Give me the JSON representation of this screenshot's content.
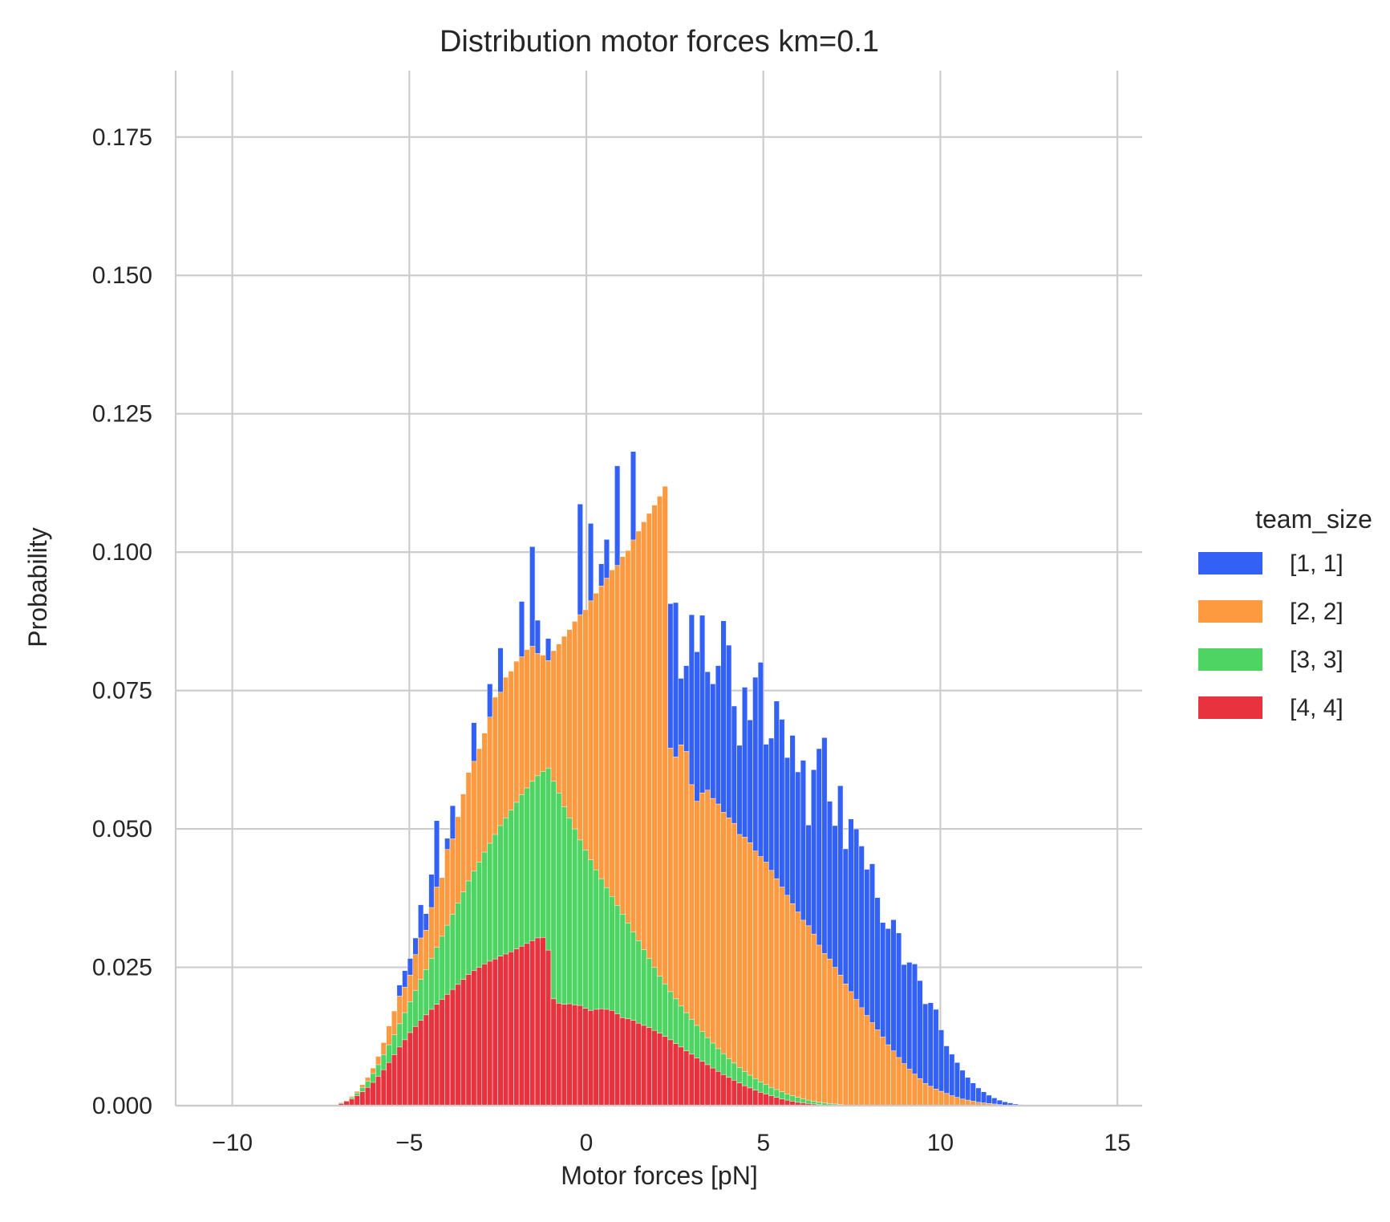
{
  "chart_data": {
    "type": "bar",
    "stacked": true,
    "title": "Distribution motor forces km=0.1",
    "xlabel": "Motor forces [pN]",
    "ylabel": "Probability",
    "xlim": [
      -11.6,
      15.7
    ],
    "ylim": [
      0,
      0.187
    ],
    "xticks": [
      -10,
      -5,
      0,
      5,
      10,
      15
    ],
    "xtick_labels": [
      "−10",
      "−5",
      "0",
      "5",
      "10",
      "15"
    ],
    "yticks": [
      0,
      0.025,
      0.05,
      0.075,
      0.1,
      0.125,
      0.15,
      0.175
    ],
    "ytick_labels": [
      "0.000",
      "0.025",
      "0.050",
      "0.075",
      "0.100",
      "0.125",
      "0.150",
      "0.175"
    ],
    "grid": true,
    "legend": {
      "title": "team_size",
      "placement": "right"
    },
    "bin_start": -7.0,
    "bin_width": 0.15,
    "series": [
      {
        "name": "[1, 1]",
        "color": "#3461f5",
        "cumulative": [
          0.0006,
          0.001,
          0.0017,
          0.0026,
          0.0038,
          0.0051,
          0.0068,
          0.0089,
          0.0114,
          0.0144,
          0.0171,
          0.0218,
          0.0244,
          0.0266,
          0.0303,
          0.0363,
          0.0347,
          0.0418,
          0.0515,
          0.0392,
          0.0483,
          0.0542,
          0.0472,
          0.0493,
          0.0592,
          0.0692,
          0.0595,
          0.0523,
          0.0762,
          0.0658,
          0.0827,
          0.0664,
          0.0725,
          0.0763,
          0.0911,
          0.0804,
          0.101,
          0.0877,
          0.0814,
          0.0844,
          0.0732,
          0.0754,
          0.0828,
          0.086,
          0.0765,
          0.1087,
          0.0876,
          0.1052,
          0.0846,
          0.0979,
          0.1023,
          0.0881,
          0.1156,
          0.0846,
          0.0978,
          0.1182,
          0.0978,
          0.0865,
          0.0995,
          0.0815,
          0.1009,
          0.0777,
          0.0907,
          0.0909,
          0.0772,
          0.0795,
          0.0887,
          0.082,
          0.0886,
          0.0784,
          0.0762,
          0.0795,
          0.0876,
          0.0832,
          0.0722,
          0.0651,
          0.0756,
          0.0697,
          0.0774,
          0.0801,
          0.0653,
          0.0664,
          0.0731,
          0.0698,
          0.0629,
          0.0669,
          0.0603,
          0.0624,
          0.0507,
          0.0607,
          0.0645,
          0.0665,
          0.055,
          0.0506,
          0.0578,
          0.0464,
          0.0518,
          0.05,
          0.0469,
          0.0427,
          0.0437,
          0.0376,
          0.0331,
          0.032,
          0.0336,
          0.0312,
          0.0255,
          0.0259,
          0.0256,
          0.0226,
          0.0184,
          0.0186,
          0.0174,
          0.0137,
          0.0108,
          0.0093,
          0.0078,
          0.0064,
          0.0051,
          0.0041,
          0.0032,
          0.0025,
          0.0019,
          0.0014,
          0.001,
          0.0007,
          0.0005,
          0.0003,
          0.0002,
          0.0001
        ]
      },
      {
        "name": "[2, 2]",
        "color": "#fd9a3f",
        "cumulative": [
          0.0006,
          0.001,
          0.0017,
          0.0026,
          0.0038,
          0.0051,
          0.0068,
          0.0089,
          0.0114,
          0.0144,
          0.0171,
          0.0198,
          0.0214,
          0.0236,
          0.0273,
          0.0303,
          0.0317,
          0.0358,
          0.0395,
          0.0412,
          0.0463,
          0.0482,
          0.0522,
          0.0563,
          0.0602,
          0.0622,
          0.0645,
          0.0673,
          0.0702,
          0.0738,
          0.0747,
          0.0774,
          0.0785,
          0.0803,
          0.0811,
          0.0824,
          0.083,
          0.0817,
          0.0814,
          0.0804,
          0.0822,
          0.0834,
          0.0848,
          0.086,
          0.0875,
          0.0887,
          0.0896,
          0.0912,
          0.0926,
          0.0939,
          0.0953,
          0.0968,
          0.0976,
          0.0992,
          0.1003,
          0.1022,
          0.1038,
          0.1055,
          0.107,
          0.1085,
          0.1101,
          0.1119,
          0.0646,
          0.063,
          0.0652,
          0.064,
          0.058,
          0.055,
          0.0565,
          0.057,
          0.0555,
          0.0545,
          0.053,
          0.052,
          0.051,
          0.049,
          0.0485,
          0.0475,
          0.046,
          0.045,
          0.044,
          0.0425,
          0.041,
          0.0395,
          0.038,
          0.0365,
          0.035,
          0.0335,
          0.0325,
          0.031,
          0.029,
          0.0275,
          0.0265,
          0.025,
          0.0236,
          0.022,
          0.0206,
          0.0192,
          0.0177,
          0.0163,
          0.015,
          0.0137,
          0.0124,
          0.011,
          0.0099,
          0.0087,
          0.0076,
          0.0066,
          0.0057,
          0.0049,
          0.004,
          0.0035,
          0.003,
          0.0026,
          0.0022,
          0.0018,
          0.0015,
          0.0012,
          0.001,
          0.0008,
          0.0006,
          0.0005,
          0.0004,
          0.0003,
          0.0002,
          0.0001,
          0.0001,
          0.0001,
          0.0001,
          0.0001
        ]
      },
      {
        "name": "[3, 3]",
        "color": "#4dd463",
        "cumulative": [
          0.0005,
          0.0009,
          0.0015,
          0.0023,
          0.0033,
          0.0044,
          0.0058,
          0.0074,
          0.0092,
          0.011,
          0.0128,
          0.0148,
          0.0168,
          0.0188,
          0.0208,
          0.0228,
          0.0246,
          0.0266,
          0.0286,
          0.0306,
          0.0326,
          0.0346,
          0.0366,
          0.0386,
          0.0406,
          0.0424,
          0.044,
          0.0458,
          0.0474,
          0.049,
          0.0506,
          0.052,
          0.0534,
          0.0548,
          0.0562,
          0.0574,
          0.0586,
          0.0596,
          0.0604,
          0.061,
          0.0586,
          0.0565,
          0.054,
          0.052,
          0.05,
          0.048,
          0.0462,
          0.0444,
          0.0426,
          0.041,
          0.0394,
          0.0378,
          0.0362,
          0.0346,
          0.033,
          0.0314,
          0.0298,
          0.0282,
          0.0266,
          0.025,
          0.0234,
          0.022,
          0.0206,
          0.0193,
          0.018,
          0.0168,
          0.0156,
          0.0145,
          0.0134,
          0.0123,
          0.0113,
          0.0103,
          0.0094,
          0.0085,
          0.0077,
          0.0069,
          0.0062,
          0.0055,
          0.0049,
          0.0043,
          0.0038,
          0.0033,
          0.0029,
          0.0025,
          0.0021,
          0.0018,
          0.0015,
          0.0012,
          0.001,
          0.0008,
          0.0006,
          0.0005,
          0.0004,
          0.0003,
          0.0002,
          0.0001,
          0.0001,
          0.0001,
          0.0001,
          0.0001,
          0.0001,
          0.0001,
          0.0001,
          0.0001,
          0.0001,
          0.0001,
          0.0001,
          0.0001,
          0.0001,
          0.0001,
          0.0001,
          0.0001,
          0.0001,
          0.0001,
          0.0001,
          0.0001,
          0.0001,
          0.0001,
          0.0001,
          0.0001,
          0.0001,
          0.0001,
          0.0001,
          0.0001,
          0.0001,
          0.0001,
          0.0001,
          0.0001,
          0.0001,
          0.0001
        ]
      },
      {
        "name": "[4, 4]",
        "color": "#e8323e",
        "cumulative": [
          0.0004,
          0.0008,
          0.0012,
          0.0018,
          0.0025,
          0.0033,
          0.0042,
          0.0053,
          0.0065,
          0.0078,
          0.0092,
          0.0106,
          0.0119,
          0.0132,
          0.0143,
          0.0154,
          0.0164,
          0.0174,
          0.0183,
          0.0192,
          0.0201,
          0.021,
          0.0219,
          0.0228,
          0.0237,
          0.0244,
          0.025,
          0.0256,
          0.0261,
          0.0265,
          0.027,
          0.0274,
          0.0278,
          0.0283,
          0.0288,
          0.0293,
          0.0298,
          0.0303,
          0.0304,
          0.0281,
          0.0193,
          0.0185,
          0.0183,
          0.0184,
          0.0182,
          0.0181,
          0.0176,
          0.0172,
          0.0174,
          0.0175,
          0.0174,
          0.0172,
          0.0166,
          0.0159,
          0.0157,
          0.0154,
          0.0149,
          0.0145,
          0.0141,
          0.0136,
          0.0131,
          0.0125,
          0.0119,
          0.0112,
          0.0106,
          0.0099,
          0.0093,
          0.0086,
          0.008,
          0.0074,
          0.0068,
          0.0062,
          0.0056,
          0.0051,
          0.0046,
          0.0041,
          0.0036,
          0.0032,
          0.0028,
          0.0024,
          0.0021,
          0.0018,
          0.0015,
          0.0012,
          0.001,
          0.0008,
          0.0006,
          0.0005,
          0.0004,
          0.0003,
          0.0002,
          0.0001,
          0.0001,
          0.0001,
          0.0001,
          0.0001,
          0.0001,
          0.0001,
          0.0001,
          0.0001,
          0.0001,
          0.0001,
          0.0001,
          0.0001,
          0.0001,
          0.0001,
          0.0001,
          0.0001,
          0.0001,
          0.0001,
          0.0001,
          0.0001,
          0.0001,
          0.0001,
          0.0001,
          0.0001,
          0.0001,
          0.0001,
          0.0001,
          0.0001,
          0.0001,
          0.0001,
          0.0001,
          0.0001,
          0.0001,
          0.0001,
          0.0001,
          0.0001,
          0.0001,
          0.0001
        ]
      }
    ]
  }
}
